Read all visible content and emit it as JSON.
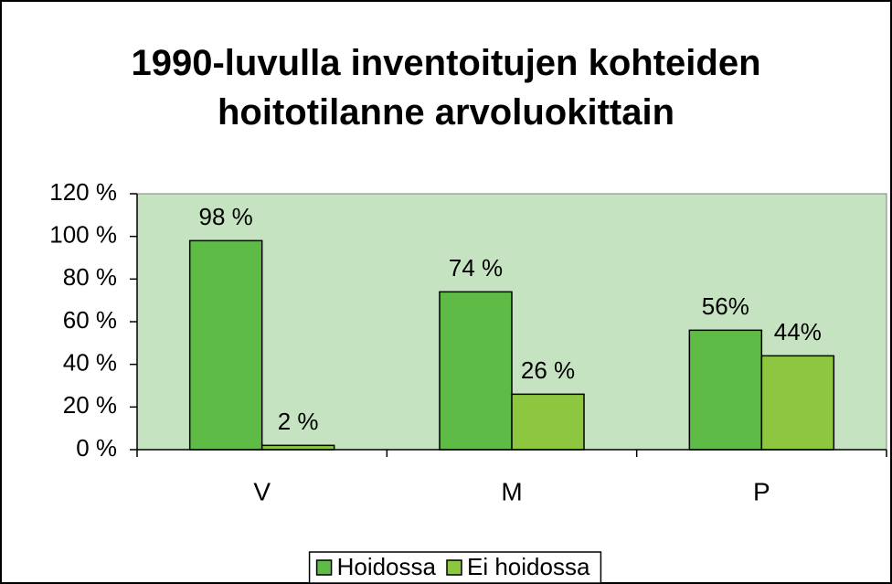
{
  "chart_data": {
    "type": "bar",
    "title": "1990-luvulla inventoitujen kohteiden hoitotilanne arvoluokittain",
    "categories": [
      "V",
      "M",
      "P"
    ],
    "series": [
      {
        "name": "Hoidossa",
        "color": "#5dbb46",
        "values": [
          98,
          74,
          56
        ],
        "value_labels": [
          "98 %",
          "74 %",
          "56%"
        ]
      },
      {
        "name": "Ei hoidossa",
        "color": "#8dc63f",
        "values": [
          2,
          26,
          44
        ],
        "value_labels": [
          "2 %",
          "26 %",
          "44%"
        ]
      }
    ],
    "ylim": [
      0,
      120
    ],
    "yticks": [
      {
        "value": 0,
        "label": "0 %"
      },
      {
        "value": 20,
        "label": "20 %"
      },
      {
        "value": 40,
        "label": "40 %"
      },
      {
        "value": 60,
        "label": "60 %"
      },
      {
        "value": 80,
        "label": "80 %"
      },
      {
        "value": 100,
        "label": "100 %"
      },
      {
        "value": 120,
        "label": "120 %"
      }
    ],
    "legend": "bottom"
  }
}
